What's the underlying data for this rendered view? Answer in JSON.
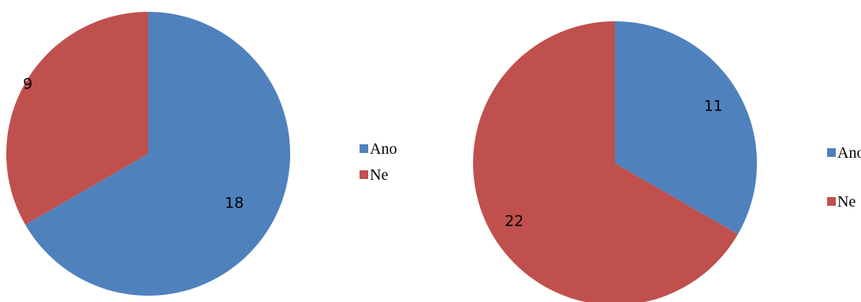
{
  "chart_data": [
    {
      "type": "pie",
      "categories": [
        "Ano",
        "Ne"
      ],
      "values": [
        18,
        9
      ],
      "colors": [
        "#4F81BD",
        "#C0504D"
      ],
      "legend_position": "right"
    },
    {
      "type": "pie",
      "categories": [
        "Ano",
        "Ne"
      ],
      "values": [
        11,
        22
      ],
      "colors": [
        "#4F81BD",
        "#C0504D"
      ],
      "legend_position": "right"
    }
  ]
}
